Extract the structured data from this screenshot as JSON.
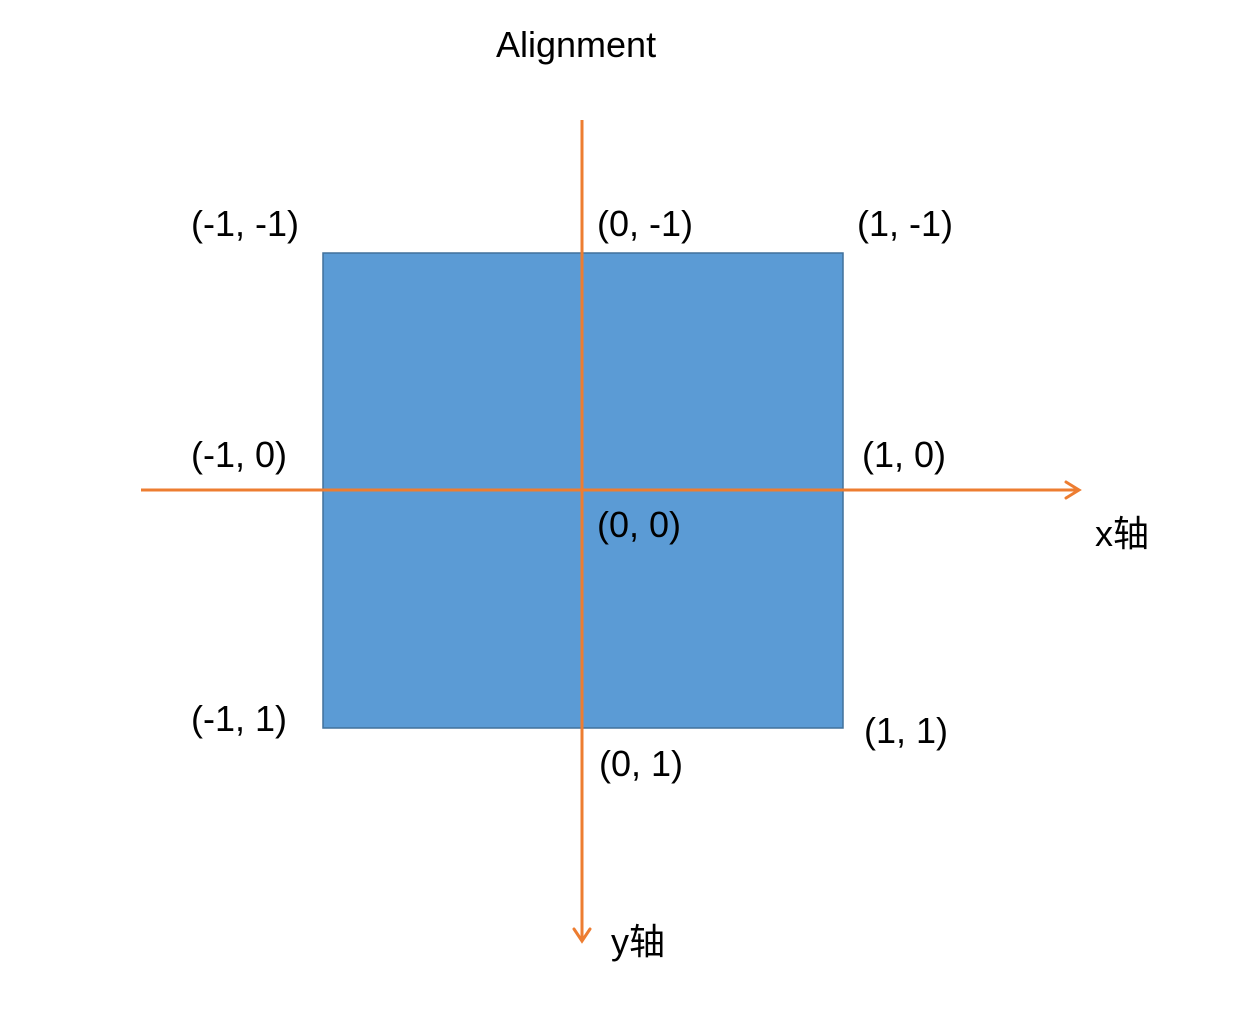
{
  "diagram": {
    "title": "Alignment",
    "axes": {
      "x_label": "x轴",
      "y_label": "y轴"
    },
    "points": {
      "top_left": "(-1, -1)",
      "top_center": "(0, -1)",
      "top_right": "(1, -1)",
      "mid_left": "(-1, 0)",
      "center": "(0, 0)",
      "mid_right": "(1, 0)",
      "bottom_left": "(-1, 1)",
      "bottom_center": "(0, 1)",
      "bottom_right": "(1, 1)"
    },
    "colors": {
      "square_fill": "#5b9bd5",
      "square_stroke": "#41719c",
      "axis": "#ed7d31"
    }
  }
}
